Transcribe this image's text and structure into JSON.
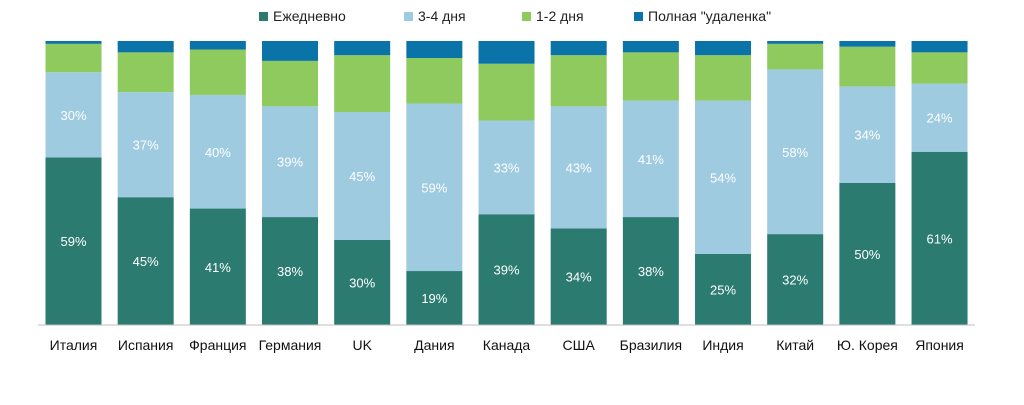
{
  "chart_data": {
    "type": "bar",
    "stacked": true,
    "percent": true,
    "title": "",
    "xlabel": "",
    "ylabel": "",
    "ylim": [
      0,
      100
    ],
    "grid": false,
    "legend_position": "top",
    "categories": [
      "Италия",
      "Испания",
      "Франция",
      "Германия",
      "UK",
      "Дания",
      "Канада",
      "США",
      "Бразилия",
      "Индия",
      "Китай",
      "Ю. Корея",
      "Япония"
    ],
    "series": [
      {
        "name": "Ежедневно",
        "color": "#2b7b71",
        "label_color": "#ffffff",
        "values": [
          59,
          45,
          41,
          38,
          30,
          19,
          39,
          34,
          38,
          25,
          32,
          50,
          61
        ]
      },
      {
        "name": "3-4 дня",
        "color": "#9fcbe0",
        "label_color": "#ffffff",
        "values": [
          30,
          37,
          40,
          39,
          45,
          59,
          33,
          43,
          41,
          54,
          58,
          34,
          24
        ]
      },
      {
        "name": "1-2 дня",
        "color": "#8fca5e",
        "label_color": "",
        "values": [
          10,
          14,
          16,
          16,
          20,
          16,
          20,
          18,
          17,
          16,
          9,
          14,
          11
        ]
      },
      {
        "name": "Полная \"удаленка\"",
        "color": "#0a73a8",
        "label_color": "",
        "values": [
          1,
          4,
          3,
          7,
          5,
          6,
          8,
          5,
          4,
          5,
          1,
          2,
          4
        ]
      }
    ]
  }
}
